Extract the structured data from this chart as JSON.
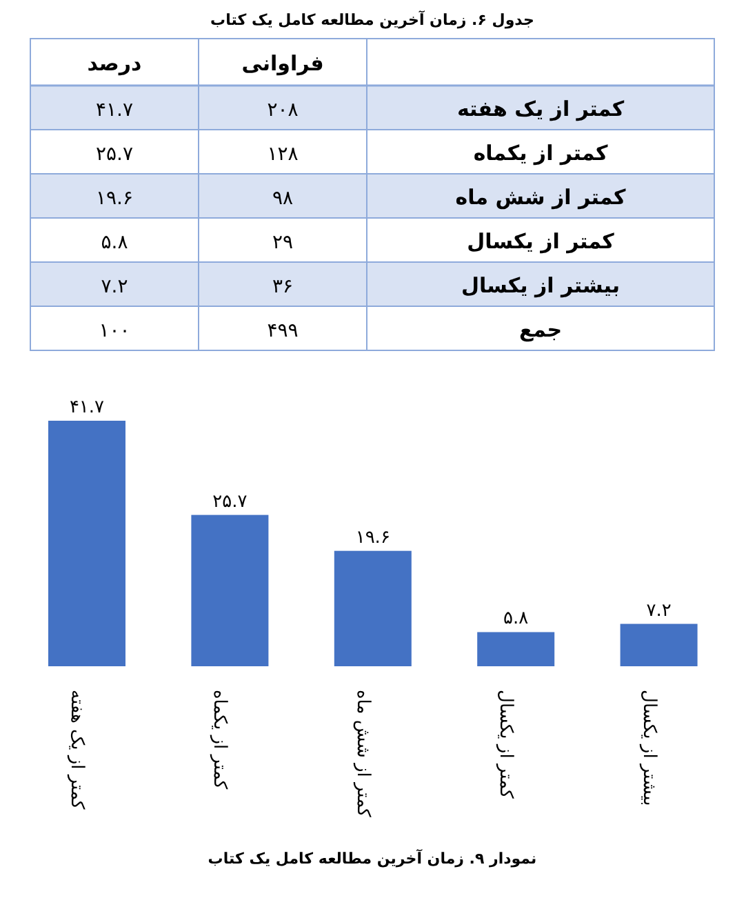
{
  "chart_data": [
    {
      "type": "other",
      "title": "جدول ۶. زمان آخرین مطالعه کامل یک کتاب",
      "categories": [
        "درصد",
        "فراوانی"
      ],
      "y_categories": [
        "کمتر از یک هفته",
        "کمتر از یکماه",
        "کمتر از شش ماه",
        "کمتر از یکسال",
        "بیشتر از یکسال",
        "جمع"
      ],
      "cell_labels": [
        [
          "۴۱.۷",
          "۲۰۸"
        ],
        [
          "۲۵.۷",
          "۱۲۸"
        ],
        [
          "۱۹.۶",
          "۹۸"
        ],
        [
          "۵.۸",
          "۲۹"
        ],
        [
          "۷.۲",
          "۳۶"
        ],
        [
          "۱۰۰",
          "۴۹۹"
        ]
      ]
    },
    {
      "type": "bar",
      "title": "نمودار ۹. زمان آخرین مطالعه کامل یک کتاب",
      "categories": [
        "کمتر از یک هفته",
        "کمتر از یکماه",
        "کمتر از شش ماه",
        "کمتر از یکسال",
        "بیشتر از یکسال"
      ],
      "values": [
        41.7,
        25.7,
        19.6,
        5.8,
        7.2
      ],
      "value_labels": [
        "۴۱.۷",
        "۲۵.۷",
        "۱۹.۶",
        "۵.۸",
        "۷.۲"
      ],
      "color": "#4472c4"
    }
  ]
}
